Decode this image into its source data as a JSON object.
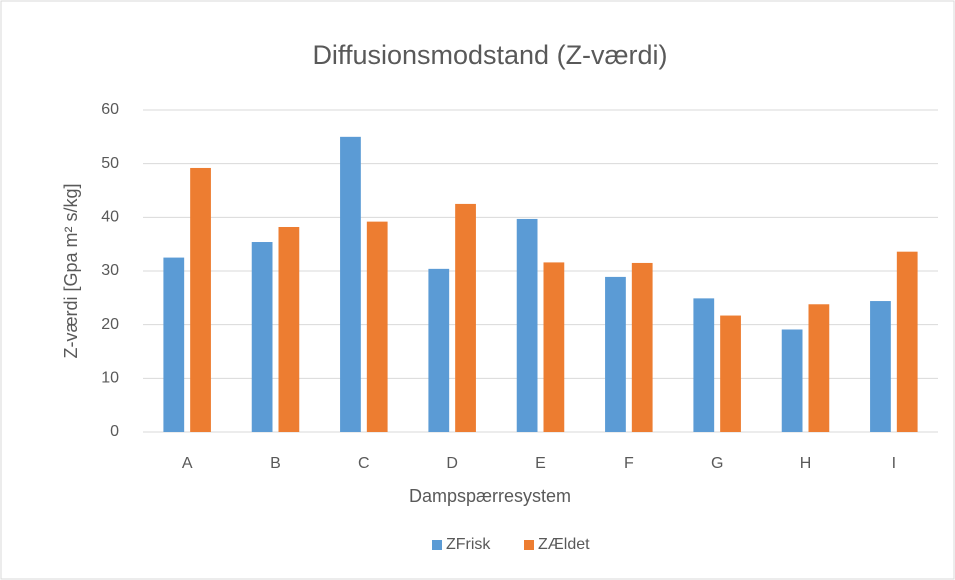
{
  "chart_data": {
    "type": "bar",
    "title": "Diffusionsmodstand (Z-værdi)",
    "x_label": "Dampspærresystem",
    "y_label": "Z-værdi [Gpa m² s/kg]",
    "categories": [
      "A",
      "B",
      "C",
      "D",
      "E",
      "F",
      "G",
      "H",
      "I"
    ],
    "series": [
      {
        "name": "ZFrisk",
        "color": "#5b9bd5",
        "values": [
          32.5,
          35.4,
          55,
          30.4,
          39.7,
          28.9,
          24.9,
          19.1,
          24.4
        ]
      },
      {
        "name": "ZÆldet",
        "color": "#ed7d31",
        "values": [
          49.2,
          38.2,
          39.2,
          42.5,
          31.6,
          31.5,
          21.7,
          23.8,
          33.6
        ]
      }
    ],
    "ylim": [
      0,
      60
    ],
    "yticks": [
      0,
      10,
      20,
      30,
      40,
      50,
      60
    ],
    "grid": true,
    "legend": "bottom"
  }
}
